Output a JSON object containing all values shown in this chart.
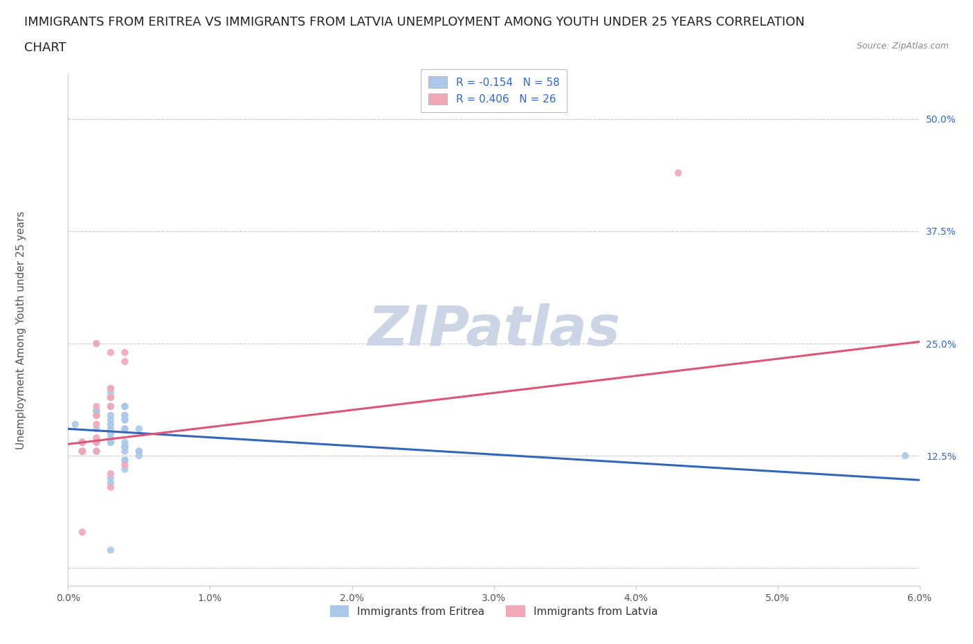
{
  "title_line1": "IMMIGRANTS FROM ERITREA VS IMMIGRANTS FROM LATVIA UNEMPLOYMENT AMONG YOUTH UNDER 25 YEARS CORRELATION",
  "title_line2": "CHART",
  "source_text": "Source: ZipAtlas.com",
  "ylabel": "Unemployment Among Youth under 25 years",
  "xlim": [
    0.0,
    0.06
  ],
  "ylim": [
    -0.02,
    0.55
  ],
  "xticks": [
    0.0,
    0.01,
    0.02,
    0.03,
    0.04,
    0.05,
    0.06
  ],
  "xticklabels": [
    "0.0%",
    "1.0%",
    "2.0%",
    "3.0%",
    "4.0%",
    "5.0%",
    "6.0%"
  ],
  "ytick_positions": [
    0.0,
    0.125,
    0.25,
    0.375,
    0.5
  ],
  "ytick_labels": [
    "",
    "12.5%",
    "25.0%",
    "37.5%",
    "50.0%"
  ],
  "background_color": "#ffffff",
  "plot_bg_color": "#ffffff",
  "grid_color": "#c8c8c8",
  "watermark_text": "ZIPatlas",
  "watermark_color": "#ccd5e5",
  "eritrea_color": "#aac8e8",
  "latvia_color": "#f0a8b8",
  "eritrea_line_color": "#3366bb",
  "latvia_line_color": "#dd5577",
  "legend_label_eritrea": "Immigrants from Eritrea",
  "legend_label_latvia": "Immigrants from Latvia",
  "eritrea_R": -0.154,
  "eritrea_N": 58,
  "latvia_R": 0.406,
  "latvia_N": 26,
  "title_fontsize": 13,
  "axis_label_fontsize": 11,
  "tick_fontsize": 10,
  "legend_fontsize": 11,
  "eritrea_trend_x0": 0.0,
  "eritrea_trend_y0": 0.155,
  "eritrea_trend_x1": 0.06,
  "eritrea_trend_y1": 0.098,
  "latvia_trend_x0": 0.0,
  "latvia_trend_y0": 0.138,
  "latvia_trend_x1": 0.06,
  "latvia_trend_y1": 0.252,
  "eritrea_x": [
    0.003,
    0.001,
    0.002,
    0.001,
    0.002,
    0.001,
    0.0005,
    0.001,
    0.002,
    0.001,
    0.001,
    0.002,
    0.001,
    0.001,
    0.002,
    0.003,
    0.003,
    0.001,
    0.002,
    0.002,
    0.003,
    0.003,
    0.004,
    0.004,
    0.003,
    0.002,
    0.002,
    0.003,
    0.003,
    0.003,
    0.004,
    0.004,
    0.004,
    0.003,
    0.005,
    0.004,
    0.004,
    0.002,
    0.003,
    0.004,
    0.003,
    0.004,
    0.004,
    0.003,
    0.003,
    0.004,
    0.005,
    0.005,
    0.004,
    0.004,
    0.004,
    0.005,
    0.005,
    0.005,
    0.004,
    0.059,
    0.004,
    0.003
  ],
  "eritrea_y": [
    0.15,
    0.14,
    0.13,
    0.13,
    0.14,
    0.13,
    0.16,
    0.14,
    0.155,
    0.14,
    0.14,
    0.175,
    0.14,
    0.13,
    0.25,
    0.155,
    0.19,
    0.14,
    0.17,
    0.175,
    0.195,
    0.2,
    0.18,
    0.17,
    0.145,
    0.14,
    0.13,
    0.17,
    0.16,
    0.18,
    0.18,
    0.165,
    0.165,
    0.02,
    0.155,
    0.155,
    0.17,
    0.14,
    0.14,
    0.155,
    0.165,
    0.12,
    0.11,
    0.1,
    0.095,
    0.14,
    0.13,
    0.125,
    0.13,
    0.135,
    0.135,
    0.13,
    0.13,
    0.13,
    0.12,
    0.125,
    0.135,
    0.14
  ],
  "latvia_x": [
    0.001,
    0.001,
    0.001,
    0.001,
    0.001,
    0.002,
    0.002,
    0.001,
    0.001,
    0.001,
    0.002,
    0.002,
    0.003,
    0.002,
    0.002,
    0.002,
    0.003,
    0.003,
    0.003,
    0.004,
    0.004,
    0.043,
    0.001,
    0.003,
    0.003,
    0.004
  ],
  "latvia_y": [
    0.14,
    0.13,
    0.13,
    0.14,
    0.13,
    0.16,
    0.25,
    0.13,
    0.14,
    0.13,
    0.14,
    0.13,
    0.24,
    0.18,
    0.17,
    0.145,
    0.2,
    0.19,
    0.18,
    0.24,
    0.23,
    0.44,
    0.04,
    0.105,
    0.09,
    0.115
  ]
}
